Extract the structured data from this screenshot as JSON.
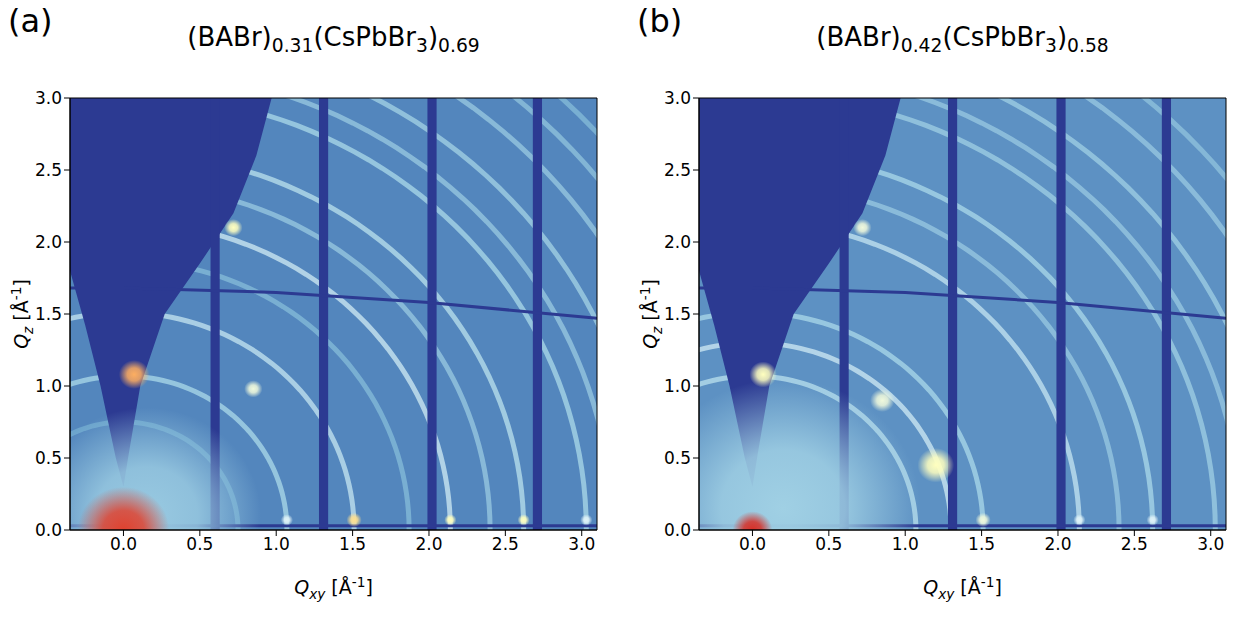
{
  "chart_data": [
    {
      "type": "heatmap",
      "panel": "(a)",
      "title": "(BABr)0.31(CsPbBr3)0.69",
      "x_label": "Qxy [Å-1]",
      "y_label": "Qz [Å-1]",
      "xlim": [
        -0.35,
        3.1
      ],
      "ylim": [
        0,
        3.0
      ],
      "xticks": [
        {
          "value": 0,
          "label": "0.0"
        },
        0.5,
        {
          "value": 1,
          "label": "1.0"
        },
        1.5,
        {
          "value": 2,
          "label": "2.0"
        },
        2.5,
        {
          "value": 3,
          "label": "3.0"
        }
      ],
      "yticks": [
        {
          "value": 0,
          "label": "0.0"
        },
        0.5,
        {
          "value": 1,
          "label": "1.0"
        },
        1.5,
        {
          "value": 2,
          "label": "2.0"
        },
        2.5,
        {
          "value": 3,
          "label": "3.0"
        }
      ],
      "background_intensity": 0.13,
      "rings": {
        "q": [
          0.75,
          1.07,
          1.51,
          1.87,
          2.14,
          2.4,
          2.62,
          3.03,
          3.2,
          3.42,
          3.72,
          3.95,
          4.15
        ],
        "intensity": [
          0.2,
          0.35,
          0.4,
          0.25,
          0.42,
          0.3,
          0.38,
          0.35,
          0.3,
          0.33,
          0.3,
          0.28,
          0.25
        ]
      },
      "spots": {
        "qxy": [
          0.15,
          0,
          0.07,
          1.07,
          1.51,
          2.14,
          2.62,
          3.03,
          0.72,
          0.85
        ],
        "qz": [
          0.1,
          0,
          1.08,
          0.07,
          0.07,
          0.07,
          0.07,
          0.07,
          2.1,
          0.98
        ],
        "size": [
          0.75,
          0.3,
          0.1,
          0.04,
          0.05,
          0.04,
          0.04,
          0.04,
          0.06,
          0.06
        ],
        "intensity": [
          0.3,
          0.92,
          0.75,
          0.45,
          0.65,
          0.55,
          0.55,
          0.45,
          0.55,
          0.5
        ]
      },
      "missing_wedge": {
        "qxy": [
          -0.35,
          -0.25,
          -0.15,
          -0.05,
          0,
          0.03,
          0.11,
          0.27,
          0.5,
          0.72,
          0.87,
          0.97
        ],
        "qz": [
          1.8,
          1.42,
          1.0,
          0.5,
          0.3,
          0.5,
          1.0,
          1.5,
          1.85,
          2.2,
          2.6,
          3.0
        ]
      },
      "detector_gaps": {
        "qxy_start": [
          0.57,
          1.28,
          1.99,
          2.68
        ],
        "qxy_end": [
          0.63,
          1.34,
          2.05,
          2.74
        ]
      },
      "detector_seams": [
        {
          "qxy": [
            -0.35,
            0,
            1,
            2,
            3.1
          ],
          "qz": [
            1.68,
            1.68,
            1.65,
            1.58,
            1.47
          ]
        },
        {
          "qxy": [
            -0.35,
            3.1
          ],
          "qz": [
            0.03,
            0.03
          ]
        }
      ]
    },
    {
      "type": "heatmap",
      "panel": "(b)",
      "title": "(BABr)0.42(CsPbBr3)0.58",
      "x_label": "Qxy [Å-1]",
      "y_label": "Qz [Å-1]",
      "xlim": [
        -0.35,
        3.1
      ],
      "ylim": [
        0,
        3.0
      ],
      "xticks": [
        {
          "value": 0,
          "label": "0.0"
        },
        0.5,
        {
          "value": 1,
          "label": "1.0"
        },
        1.5,
        {
          "value": 2,
          "label": "2.0"
        },
        2.5,
        {
          "value": 3,
          "label": "3.0"
        }
      ],
      "yticks": [
        {
          "value": 0,
          "label": "0.0"
        },
        0.5,
        {
          "value": 1,
          "label": "1.0"
        },
        1.5,
        {
          "value": 2,
          "label": "2.0"
        },
        2.5,
        {
          "value": 3,
          "label": "3.0"
        }
      ],
      "background_intensity": 0.15,
      "rings": {
        "q": [
          1.07,
          1.3,
          1.51,
          2.14,
          2.4,
          2.62,
          3.03,
          3.2,
          3.42,
          3.72,
          3.95
        ],
        "intensity": [
          0.38,
          0.42,
          0.35,
          0.4,
          0.3,
          0.35,
          0.32,
          0.3,
          0.32,
          0.3,
          0.28
        ]
      },
      "spots": {
        "qxy": [
          0.2,
          0,
          0.07,
          1.51,
          2.14,
          2.62,
          0.72,
          1.2,
          0.85
        ],
        "qz": [
          0.15,
          0,
          1.08,
          0.07,
          0.07,
          0.07,
          2.1,
          0.45,
          0.9
        ],
        "size": [
          0.9,
          0.13,
          0.09,
          0.05,
          0.04,
          0.04,
          0.06,
          0.12,
          0.08
        ],
        "intensity": [
          0.32,
          0.95,
          0.55,
          0.5,
          0.45,
          0.45,
          0.5,
          0.55,
          0.5
        ]
      },
      "missing_wedge": {
        "qxy": [
          -0.35,
          -0.25,
          -0.15,
          -0.05,
          0,
          0.03,
          0.11,
          0.27,
          0.5,
          0.72,
          0.87,
          0.97
        ],
        "qz": [
          1.8,
          1.42,
          1.0,
          0.5,
          0.3,
          0.5,
          1.0,
          1.5,
          1.85,
          2.2,
          2.6,
          3.0
        ]
      },
      "detector_gaps": {
        "qxy_start": [
          0.57,
          1.28,
          1.99,
          2.68
        ],
        "qxy_end": [
          0.63,
          1.34,
          2.05,
          2.74
        ]
      },
      "detector_seams": [
        {
          "qxy": [
            -0.35,
            0,
            1,
            2,
            3.1
          ],
          "qz": [
            1.68,
            1.68,
            1.65,
            1.58,
            1.47
          ]
        },
        {
          "qxy": [
            -0.35,
            3.1
          ],
          "qz": [
            0.03,
            0.03
          ]
        }
      ]
    }
  ]
}
